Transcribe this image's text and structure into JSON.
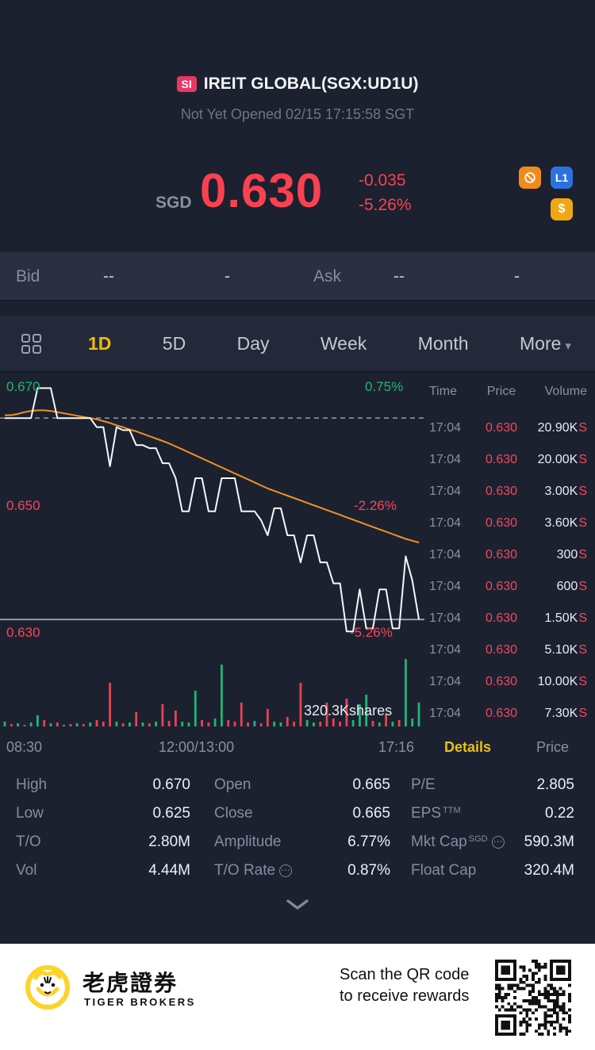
{
  "header": {
    "market_badge": "SI",
    "title": "IREIT GLOBAL(SGX:UD1U)",
    "status": "Not Yet Opened 02/15 17:15:58 SGT"
  },
  "quote": {
    "currency": "SGD",
    "last_price": "0.630",
    "change": "-0.035",
    "change_percent": "-5.26%",
    "l1_badge": "L1",
    "dollar_badge": "$"
  },
  "bid_ask": {
    "bid_label": "Bid",
    "bid_price": "--",
    "bid_size": "-",
    "ask_label": "Ask",
    "ask_price": "--",
    "ask_size": "-"
  },
  "tabs": {
    "items": [
      {
        "label": "1D",
        "active": true
      },
      {
        "label": "5D",
        "active": false
      },
      {
        "label": "Day",
        "active": false
      },
      {
        "label": "Week",
        "active": false
      },
      {
        "label": "Month",
        "active": false
      },
      {
        "label": "More",
        "active": false,
        "caret": "▾"
      }
    ]
  },
  "trades": {
    "headers": [
      "Time",
      "Price",
      "Volume"
    ],
    "rows": [
      {
        "time": "17:04",
        "price": "0.630",
        "volume": "20.90K",
        "side": "S"
      },
      {
        "time": "17:04",
        "price": "0.630",
        "volume": "20.00K",
        "side": "S"
      },
      {
        "time": "17:04",
        "price": "0.630",
        "volume": "3.00K",
        "side": "S"
      },
      {
        "time": "17:04",
        "price": "0.630",
        "volume": "3.60K",
        "side": "S"
      },
      {
        "time": "17:04",
        "price": "0.630",
        "volume": "300",
        "side": "S"
      },
      {
        "time": "17:04",
        "price": "0.630",
        "volume": "600",
        "side": "S"
      },
      {
        "time": "17:04",
        "price": "0.630",
        "volume": "1.50K",
        "side": "S"
      },
      {
        "time": "17:04",
        "price": "0.630",
        "volume": "5.10K",
        "side": "S"
      },
      {
        "time": "17:04",
        "price": "0.630",
        "volume": "10.00K",
        "side": "S"
      },
      {
        "time": "17:04",
        "price": "0.630",
        "volume": "7.30K",
        "side": "S"
      }
    ]
  },
  "panel_tabs": {
    "details": "Details",
    "price": "Price"
  },
  "stats": {
    "high": {
      "label": "High",
      "value": "0.670"
    },
    "open": {
      "label": "Open",
      "value": "0.665"
    },
    "pe": {
      "label": "P/E",
      "value": "2.805"
    },
    "low": {
      "label": "Low",
      "value": "0.625"
    },
    "close": {
      "label": "Close",
      "value": "0.665"
    },
    "eps": {
      "label": "EPS",
      "sup": "TTM",
      "value": "0.22"
    },
    "to": {
      "label": "T/O",
      "value": "2.80M"
    },
    "amplitude": {
      "label": "Amplitude",
      "value": "6.77%"
    },
    "mkt_cap": {
      "label": "Mkt Cap",
      "sup": "SGD",
      "value": "590.3M"
    },
    "vol": {
      "label": "Vol",
      "value": "4.44M"
    },
    "to_rate": {
      "label": "T/O Rate",
      "value": "0.87%"
    },
    "float_cap": {
      "label": "Float Cap",
      "value": "320.4M"
    }
  },
  "footer": {
    "brand_cn": "老虎證券",
    "brand_en": "TIGER BROKERS",
    "scan_line1": "Scan the QR code",
    "scan_line2": "to receive rewards"
  },
  "chart_data": {
    "type": "line",
    "title": "IREIT GLOBAL 1D intraday",
    "x_ticks": [
      "08:30",
      "12:00/13:00",
      "17:16"
    ],
    "ylim": [
      0.629,
      0.6715
    ],
    "prev_close": 0.665,
    "floor_line": 0.6315,
    "overlays": {
      "high_price": "0.670",
      "high_pct": "0.75%",
      "mid_price": "0.650",
      "mid_pct": "-2.26%",
      "low_price": "0.630",
      "low_pct": "-5.26%",
      "volume_note": "320.3Kshares"
    },
    "series": [
      {
        "name": "price",
        "color": "#f5f7fa",
        "values": [
          0.665,
          0.665,
          0.665,
          0.665,
          0.665,
          0.67,
          0.67,
          0.67,
          0.665,
          0.665,
          0.665,
          0.665,
          0.665,
          0.665,
          0.6635,
          0.6635,
          0.657,
          0.6635,
          0.663,
          0.663,
          0.6605,
          0.6605,
          0.66,
          0.66,
          0.6575,
          0.6575,
          0.655,
          0.6495,
          0.6495,
          0.655,
          0.655,
          0.6495,
          0.6495,
          0.655,
          0.655,
          0.655,
          0.6495,
          0.6495,
          0.6495,
          0.648,
          0.6455,
          0.65,
          0.65,
          0.6455,
          0.6455,
          0.641,
          0.6455,
          0.6455,
          0.641,
          0.641,
          0.6375,
          0.6375,
          0.6295,
          0.6295,
          0.6365,
          0.63,
          0.63,
          0.6365,
          0.6365,
          0.63,
          0.63,
          0.642,
          0.638,
          0.6315
        ]
      },
      {
        "name": "avg_price",
        "color": "#f2921d",
        "values": [
          0.6655,
          0.6655,
          0.6657,
          0.666,
          0.6662,
          0.6663,
          0.6663,
          0.6662,
          0.666,
          0.6658,
          0.6656,
          0.6654,
          0.6652,
          0.665,
          0.6648,
          0.6645,
          0.6642,
          0.6638,
          0.6635,
          0.6631,
          0.6628,
          0.6624,
          0.662,
          0.6616,
          0.6612,
          0.6608,
          0.6603,
          0.6598,
          0.6593,
          0.6588,
          0.6583,
          0.6578,
          0.6573,
          0.6568,
          0.6563,
          0.6558,
          0.6553,
          0.6548,
          0.6543,
          0.6538,
          0.6533,
          0.6529,
          0.6525,
          0.6521,
          0.6517,
          0.6513,
          0.6509,
          0.6505,
          0.6501,
          0.6497,
          0.6493,
          0.6489,
          0.6485,
          0.6481,
          0.6477,
          0.6473,
          0.6469,
          0.6465,
          0.6461,
          0.6457,
          0.6453,
          0.6449,
          0.6446,
          0.6443
        ]
      }
    ],
    "volume": {
      "up_color": "#21b573",
      "down_color": "#e84252",
      "values": [
        0.06,
        0.03,
        0.04,
        0.02,
        0.05,
        0.14,
        0.08,
        0.04,
        0.05,
        0.02,
        0.03,
        0.04,
        0.03,
        0.05,
        0.08,
        0.06,
        0.55,
        0.06,
        0.04,
        0.05,
        0.18,
        0.05,
        0.04,
        0.06,
        0.28,
        0.07,
        0.2,
        0.06,
        0.05,
        0.45,
        0.08,
        0.05,
        0.1,
        0.78,
        0.08,
        0.06,
        0.3,
        0.05,
        0.07,
        0.04,
        0.22,
        0.06,
        0.05,
        0.12,
        0.06,
        0.55,
        0.08,
        0.05,
        0.06,
        0.3,
        0.1,
        0.06,
        0.35,
        0.08,
        0.28,
        0.4,
        0.07,
        0.05,
        0.15,
        0.06,
        0.08,
        0.85,
        0.1,
        0.3
      ],
      "colors": [
        "g",
        "r",
        "g",
        "r",
        "g",
        "g",
        "r",
        "g",
        "r",
        "g",
        "r",
        "g",
        "r",
        "g",
        "r",
        "r",
        "r",
        "g",
        "r",
        "g",
        "r",
        "g",
        "r",
        "g",
        "r",
        "r",
        "r",
        "g",
        "g",
        "g",
        "r",
        "r",
        "g",
        "g",
        "r",
        "r",
        "r",
        "r",
        "g",
        "r",
        "r",
        "g",
        "g",
        "r",
        "r",
        "r",
        "g",
        "g",
        "r",
        "r",
        "r",
        "r",
        "r",
        "g",
        "g",
        "g",
        "r",
        "g",
        "r",
        "g",
        "r",
        "g",
        "g",
        "g"
      ]
    }
  }
}
